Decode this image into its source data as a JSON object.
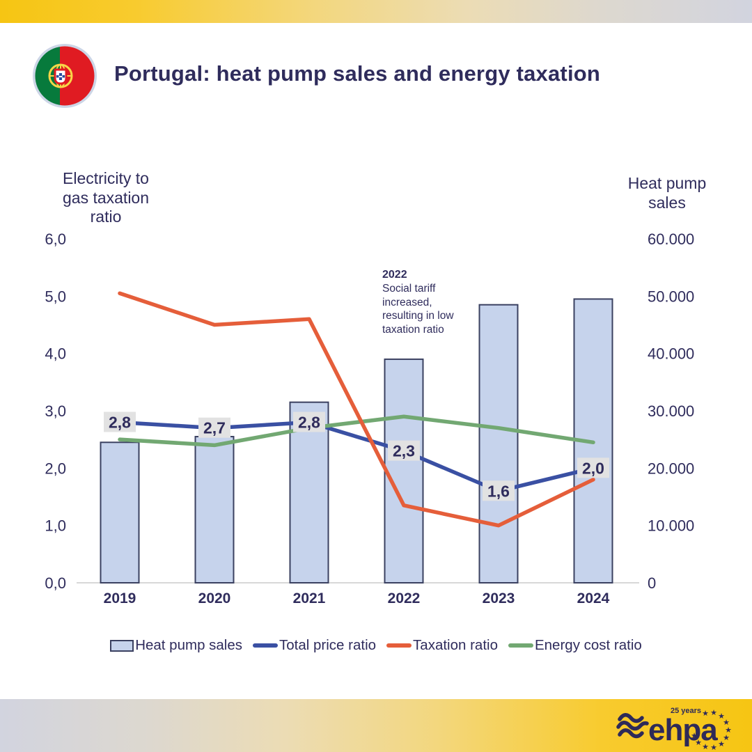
{
  "header": {
    "title": "Portugal: heat pump sales and energy taxation"
  },
  "chart_data": {
    "type": "combo-bar-line",
    "categories": [
      "2019",
      "2020",
      "2021",
      "2022",
      "2023",
      "2024"
    ],
    "bar_series": {
      "name": "Heat pump sales",
      "axis": "right",
      "color": "#c6d3ec",
      "border": "#3a4060",
      "values": [
        24500,
        25500,
        31500,
        39000,
        48500,
        49500
      ]
    },
    "line_series": [
      {
        "name": "Total price ratio",
        "axis": "left",
        "color": "#3a50a3",
        "values": [
          2.8,
          2.7,
          2.8,
          2.3,
          1.6,
          2.0
        ],
        "labels": [
          "2,8",
          "2,7",
          "2,8",
          "2,3",
          "1,6",
          "2,0"
        ]
      },
      {
        "name": "Taxation ratio",
        "axis": "left",
        "color": "#e55e3a",
        "values": [
          5.05,
          4.5,
          4.6,
          1.35,
          1.0,
          1.8
        ]
      },
      {
        "name": "Energy cost ratio",
        "axis": "left",
        "color": "#72a872",
        "values": [
          2.5,
          2.4,
          2.7,
          2.9,
          2.7,
          2.45
        ]
      }
    ],
    "axes": {
      "left": {
        "title": "Electricity to gas taxation ratio",
        "min": 0,
        "max": 6,
        "tick_labels": [
          "0,0",
          "1,0",
          "2,0",
          "3,0",
          "4,0",
          "5,0",
          "6,0"
        ]
      },
      "right": {
        "title": "Heat pump sales",
        "min": 0,
        "max": 60000,
        "tick_labels": [
          "0",
          "10.000",
          "20.000",
          "30.000",
          "40.000",
          "50.000",
          "60.000"
        ]
      }
    },
    "annotation": {
      "title": "2022",
      "body": "Social tariff increased, resulting in low taxation ratio"
    },
    "grid": false,
    "legend_position": "bottom"
  },
  "axis_titles": {
    "left_line1": "Electricity to",
    "left_line2": "gas taxation",
    "left_line3": "ratio",
    "right_line1": "Heat pump",
    "right_line2": "sales"
  },
  "legend": {
    "items": [
      {
        "label": "Heat pump sales",
        "type": "bar",
        "color": "#c6d3ec",
        "border": "#3a4060"
      },
      {
        "label": "Total price ratio",
        "type": "line",
        "color": "#3a50a3"
      },
      {
        "label": "Taxation ratio",
        "type": "line",
        "color": "#e55e3a"
      },
      {
        "label": "Energy cost ratio",
        "type": "line",
        "color": "#72a872"
      }
    ]
  },
  "footer": {
    "logo_text": "ehpa",
    "logo_badge": "25 years"
  },
  "colors": {
    "text_navy": "#2f2c5c",
    "band_yellow": "#f6c513",
    "band_gray": "#d2d4df",
    "bar_fill": "#c6d3ec",
    "bar_border": "#3a4060",
    "line_blue": "#3a50a3",
    "line_orange": "#e55e3a",
    "line_green": "#72a872",
    "label_box": "#e2e2e2",
    "axis_line": "#d8d8d8",
    "flag_green": "#077a3c",
    "flag_red": "#e01b22",
    "flag_yellow": "#f8d648"
  }
}
